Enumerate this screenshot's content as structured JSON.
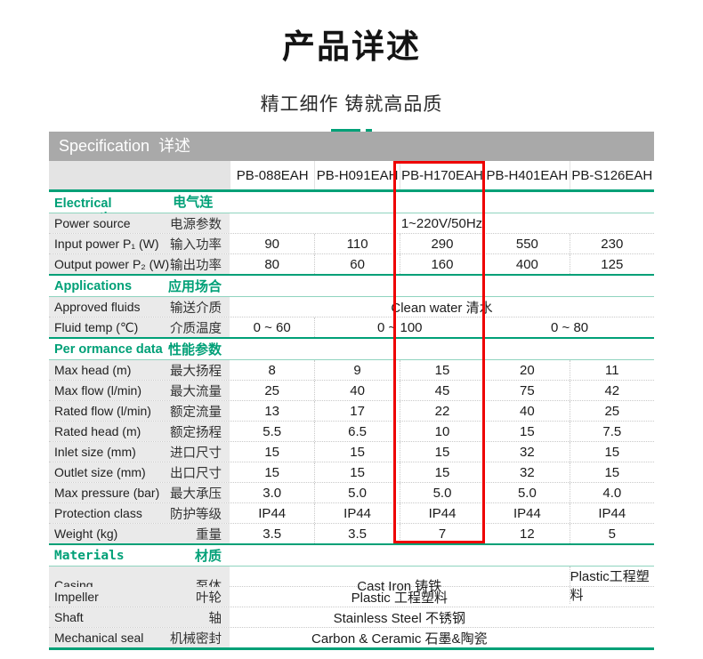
{
  "page": {
    "title": "产品详述",
    "subtitle": "精工细作 铸就高品质"
  },
  "colors": {
    "accent": "#00a077",
    "highlight": "#ee0000",
    "graybar": "#a9a9a9",
    "label_bg": "#eaeaea"
  },
  "table": {
    "caption_en": "Specification",
    "caption_zh": "详述",
    "columns": [
      "PB-088EAH",
      "PB-H091EAH",
      "PB-H170EAH",
      "PB-H401EAH",
      "PB-S126EAH"
    ],
    "highlighted_column": "PB-H170EAH",
    "sections": [
      {
        "title_en": "Electrical connection",
        "title_zh": "电气连接",
        "rows": [
          {
            "en": "Power source",
            "zh": "电源参数",
            "values": [
              {
                "text": "1~220V/50Hz",
                "span": 5
              }
            ]
          },
          {
            "en": "Input power P₁ (W)",
            "zh": "输入功率",
            "values": [
              "90",
              "110",
              "290",
              "550",
              "230"
            ]
          },
          {
            "en": "Output power P₂ (W)",
            "zh": "输出功率",
            "values": [
              "80",
              "60",
              "160",
              "400",
              "125"
            ]
          }
        ]
      },
      {
        "title_en": "Applications",
        "title_zh": "应用场合",
        "rows": [
          {
            "en": "Approved fluids",
            "zh": "输送介质",
            "values": [
              {
                "text": "Clean water 清水",
                "span": 5
              }
            ]
          },
          {
            "en": "Fluid temp (℃)",
            "zh": "介质温度",
            "values": [
              {
                "text": "0 ~ 60",
                "span": 1
              },
              {
                "text": "0 ~ 100",
                "span": 2
              },
              {
                "text": "0 ~ 80",
                "span": 2
              }
            ]
          }
        ]
      },
      {
        "title_en": "Per ormance data",
        "title_zh": "性能参数",
        "rows": [
          {
            "en": "Max head (m)",
            "zh": "最大扬程",
            "values": [
              "8",
              "9",
              "15",
              "20",
              "11"
            ]
          },
          {
            "en": "Max flow (l/min)",
            "zh": "最大流量",
            "values": [
              "25",
              "40",
              "45",
              "75",
              "42"
            ]
          },
          {
            "en": "Rated flow (l/min)",
            "zh": "额定流量",
            "values": [
              "13",
              "17",
              "22",
              "40",
              "25"
            ]
          },
          {
            "en": "Rated head (m)",
            "zh": "额定扬程",
            "values": [
              "5.5",
              "6.5",
              "10",
              "15",
              "7.5"
            ]
          },
          {
            "en": "Inlet size (mm)",
            "zh": "进口尺寸",
            "values": [
              "15",
              "15",
              "15",
              "32",
              "15"
            ]
          },
          {
            "en": "Outlet size (mm)",
            "zh": "出口尺寸",
            "values": [
              "15",
              "15",
              "15",
              "32",
              "15"
            ]
          },
          {
            "en": "Max pressure (bar)",
            "zh": "最大承压",
            "values": [
              "3.0",
              "5.0",
              "5.0",
              "5.0",
              "4.0"
            ]
          },
          {
            "en": "Protection class",
            "zh": "防护等级",
            "values": [
              "IP44",
              "IP44",
              "IP44",
              "IP44",
              "IP44"
            ]
          },
          {
            "en": "Weight  (kg)",
            "zh": "重量",
            "values": [
              "3.5",
              "3.5",
              "7",
              "12",
              "5"
            ]
          }
        ]
      },
      {
        "title_en": "Materials",
        "title_zh": "材质",
        "mono": true,
        "rows": [
          {
            "en": "Casing",
            "zh": "泵体",
            "values": [
              {
                "text": "Cast Iron 铸铁",
                "span": 4
              },
              {
                "text": "Plastic工程塑料",
                "span": 1
              }
            ]
          },
          {
            "en": "Impeller",
            "zh": "叶轮",
            "values": [
              {
                "text": "Plastic  工程塑料",
                "span": 4
              },
              {
                "text": "",
                "span": 1
              }
            ]
          },
          {
            "en": "Shaft",
            "zh": "轴",
            "values": [
              {
                "text": "Stainless Steel 不锈钢",
                "span": 4
              },
              {
                "text": "",
                "span": 1
              }
            ]
          },
          {
            "en": "Mechanical seal",
            "zh": "机械密封",
            "values": [
              {
                "text": "Carbon & Ceramic 石墨&陶瓷",
                "span": 4
              },
              {
                "text": "",
                "span": 1
              }
            ]
          }
        ]
      }
    ]
  }
}
